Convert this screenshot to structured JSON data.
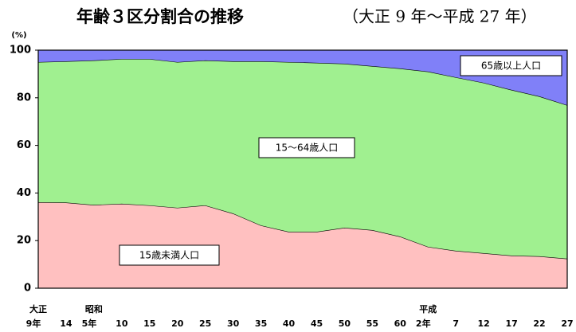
{
  "chart_data": {
    "type": "stacked_area",
    "title": "年齢３区分割合の推移",
    "subtitle": "（大正 9 年～平成 27 年）",
    "y_label": "(%)",
    "categories": [
      "大正\n9年",
      "14",
      "昭和\n5年",
      "10",
      "15",
      "20",
      "25",
      "30",
      "35",
      "40",
      "45",
      "50",
      "55",
      "60",
      "平成\n2年",
      "7",
      "12",
      "17",
      "22",
      "27"
    ],
    "series": [
      {
        "name": "15歳未満人口",
        "color": "#ffc0c0",
        "values": [
          36.1,
          36,
          35,
          35.5,
          34.8,
          33.8,
          34.8,
          31.4,
          26.4,
          23.7,
          23.7,
          25.4,
          24.4,
          21.7,
          17.4,
          15.7,
          14.7,
          13.7,
          13.4,
          12.4
        ]
      },
      {
        "name": "15～64歳人口",
        "color": "#a0f090",
        "values": [
          58.9,
          59.3,
          60.7,
          60.8,
          61.5,
          61.2,
          60.9,
          63.9,
          68.9,
          71.3,
          71,
          68.9,
          68.9,
          70.6,
          73.6,
          72.9,
          71.6,
          69.6,
          67.2,
          64.5
        ]
      },
      {
        "name": "65歳以上人口",
        "color": "#8080f8",
        "values": [
          5,
          4.7,
          4.3,
          3.7,
          3.7,
          5,
          4.3,
          4.7,
          4.7,
          5,
          5.3,
          5.7,
          6.7,
          7.7,
          9,
          11.4,
          13.7,
          16.7,
          19.4,
          23.1
        ]
      }
    ],
    "ylim": [
      0,
      100
    ],
    "yticks": [
      0,
      20,
      40,
      60,
      80,
      100
    ]
  }
}
